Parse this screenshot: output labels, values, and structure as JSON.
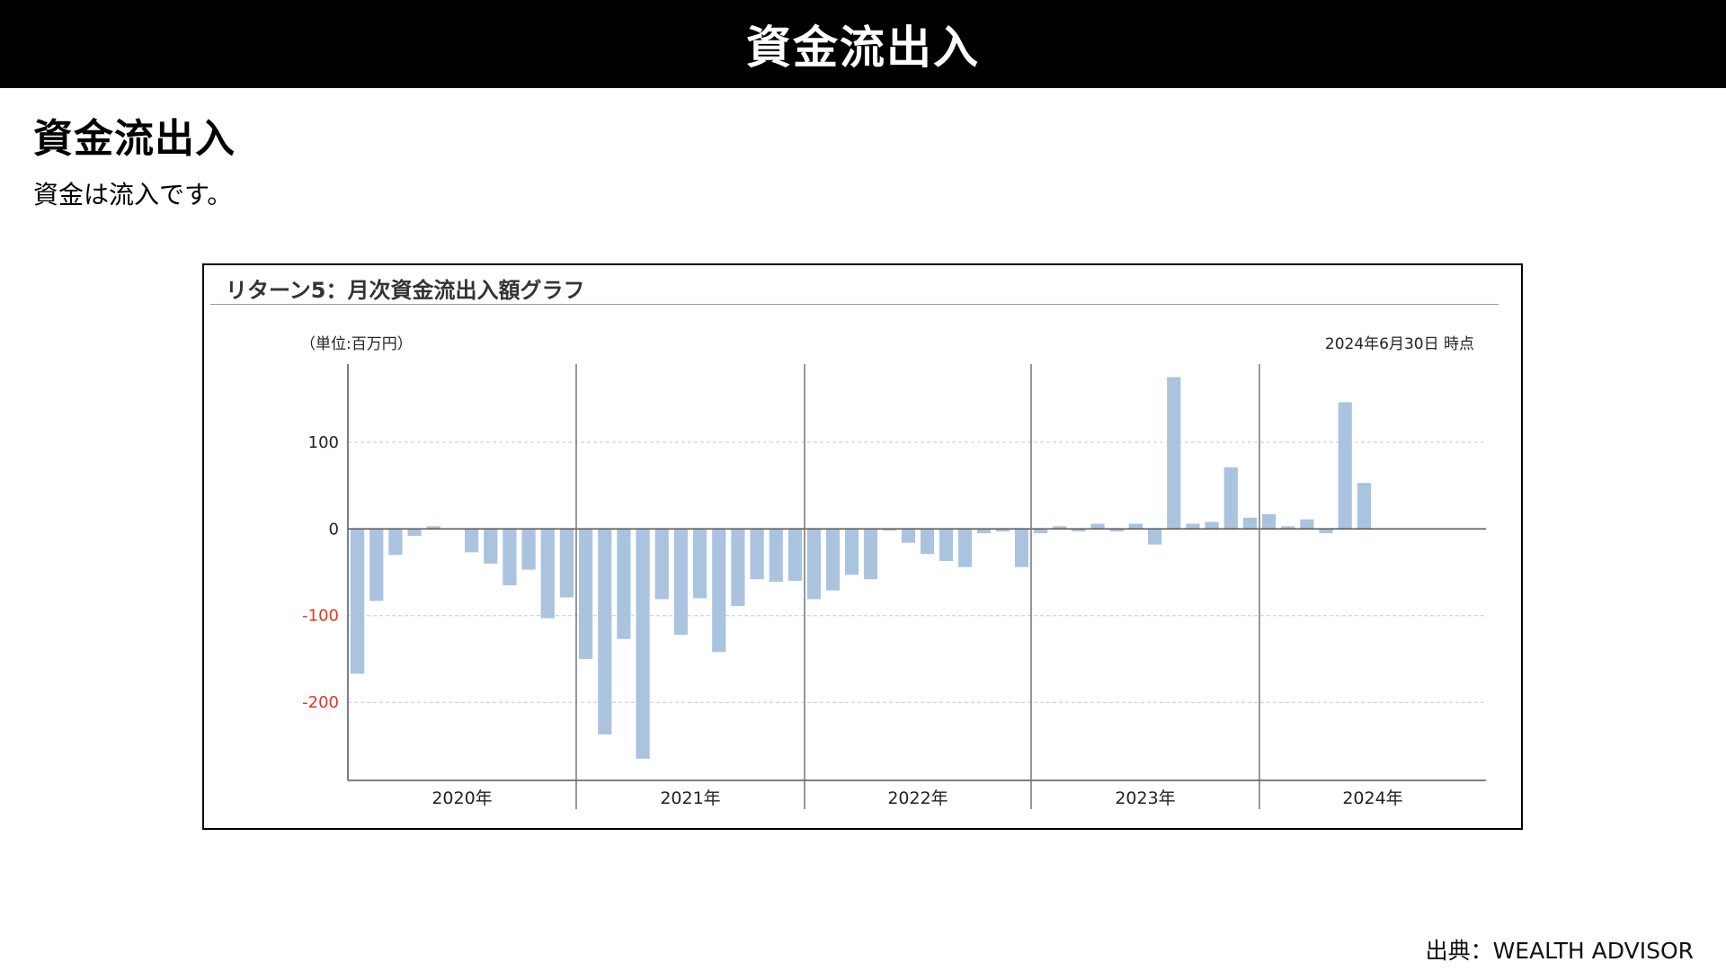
{
  "header": {
    "title": "資金流出入"
  },
  "section": {
    "heading": "資金流出入",
    "description": "資金は流入です。"
  },
  "chart_panel": {
    "title": "リターン5：月次資金流出入額グラフ",
    "unit_label": "（単位:百万円）",
    "as_of": "2024年6月30日 時点"
  },
  "footer": {
    "source": "出典：WEALTH ADVISOR"
  },
  "chart_data": {
    "type": "bar",
    "title": "リターン5：月次資金流出入額グラフ",
    "xlabel": "",
    "ylabel": "（単位:百万円）",
    "ylim": [
      -290,
      190
    ],
    "yticks": [
      100,
      0,
      -100,
      -200
    ],
    "ytick_labels": [
      "100",
      "0",
      "-100",
      "-200"
    ],
    "grid": true,
    "bar_color": "#aac4e0",
    "negative_tick_color": "#e8321e",
    "year_groups": [
      {
        "label": "2020年",
        "months": 12
      },
      {
        "label": "2021年",
        "months": 12
      },
      {
        "label": "2022年",
        "months": 12
      },
      {
        "label": "2023年",
        "months": 12
      },
      {
        "label": "2024年",
        "months": 6
      }
    ],
    "series": [
      {
        "values": [
          -167,
          -83,
          -30,
          -8,
          3,
          0,
          -27,
          -40,
          -65,
          -47,
          -103,
          -79,
          -150,
          -237,
          -127,
          -265,
          -81,
          -122,
          -80,
          -142,
          -89,
          -58,
          -61,
          -60,
          -81,
          -71,
          -53,
          -58,
          -2,
          -16,
          -29,
          -37,
          -44,
          -5,
          -3,
          -44,
          -5,
          3,
          -3,
          6,
          -3,
          6,
          -18,
          175,
          6,
          8,
          71,
          13,
          17,
          3,
          11,
          -5,
          146,
          53
        ]
      }
    ]
  }
}
